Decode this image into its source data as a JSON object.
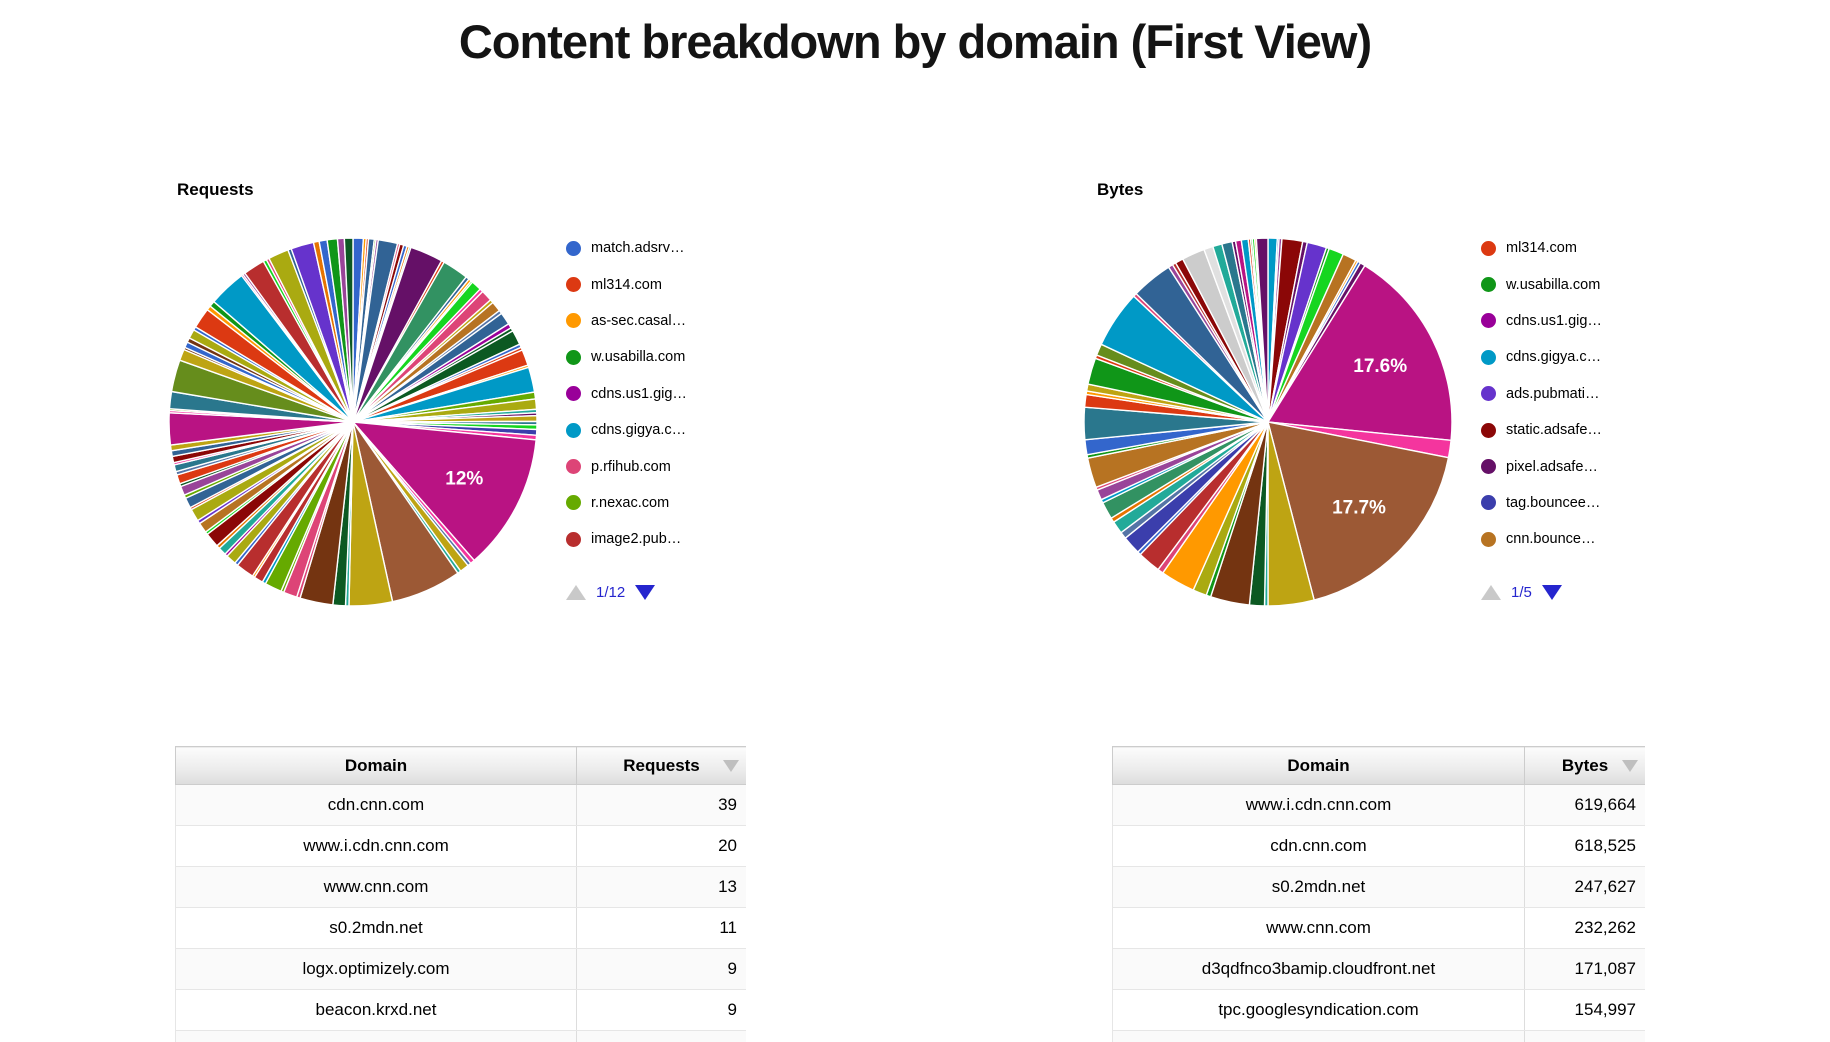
{
  "page": {
    "title": "Content breakdown by domain (First View)"
  },
  "colors": {
    "background": "#FFFFFF",
    "title_text": "#141414",
    "pagination_blue": "#2525CE",
    "pagination_disabled_gray": "#C9C9C9",
    "sort_icon_gray": "#BFBFBF",
    "table_border": "#CCCCCC",
    "pie_slice_gap": "#FFFFFF",
    "pie_label_text": "#FFFFFF"
  },
  "chart_data": [
    {
      "type": "pie",
      "title": "Requests",
      "legend_position": "right",
      "legend_page": "1/12",
      "percent_labels": [
        "12%"
      ],
      "legend_entries": [
        {
          "label": "match.adsrv…",
          "color": "#3366CC"
        },
        {
          "label": "ml314.com",
          "color": "#DC3912"
        },
        {
          "label": "as-sec.casal…",
          "color": "#FF9900"
        },
        {
          "label": "w.usabilla.com",
          "color": "#109618"
        },
        {
          "label": "cdns.us1.gig…",
          "color": "#990099"
        },
        {
          "label": "cdns.gigya.c…",
          "color": "#0099C6"
        },
        {
          "label": "p.rfihub.com",
          "color": "#DD4477"
        },
        {
          "label": "r.nexac.com",
          "color": "#66AA00"
        },
        {
          "label": "image2.pub…",
          "color": "#B82E2E"
        }
      ],
      "slices": [
        {
          "v": 0.9,
          "c": "#3366CC"
        },
        {
          "v": 0.25,
          "c": "#FF9900"
        },
        {
          "v": 0.2,
          "c": "#DC3912"
        },
        {
          "v": 0.5,
          "c": "#316395"
        },
        {
          "v": 0.15,
          "c": "#66AA00"
        },
        {
          "v": 0.2,
          "c": "#994499"
        },
        {
          "v": 1.7,
          "c": "#316395"
        },
        {
          "v": 0.2,
          "c": "#DD4477"
        },
        {
          "v": 0.35,
          "c": "#8B0707"
        },
        {
          "v": 0.3,
          "c": "#3366CC"
        },
        {
          "v": 0.2,
          "c": "#E67300"
        },
        {
          "v": 0.15,
          "c": "#22AA99"
        },
        {
          "v": 2.9,
          "c": "#651067"
        },
        {
          "v": 0.25,
          "c": "#DC3912"
        },
        {
          "v": 2.3,
          "c": "#329262"
        },
        {
          "v": 0.3,
          "c": "#316395"
        },
        {
          "v": 0.25,
          "c": "#FF9900"
        },
        {
          "v": 0.15,
          "c": "#16D620"
        },
        {
          "v": 0.9,
          "c": "#16D620"
        },
        {
          "v": 0.3,
          "c": "#F4359E"
        },
        {
          "v": 1.0,
          "c": "#DD4477"
        },
        {
          "v": 0.3,
          "c": "#BEA413"
        },
        {
          "v": 0.9,
          "c": "#B77322"
        },
        {
          "v": 0.3,
          "c": "#5574A6"
        },
        {
          "v": 1.1,
          "c": "#316395"
        },
        {
          "v": 0.4,
          "c": "#990099"
        },
        {
          "v": 0.3,
          "c": "#0C5922"
        },
        {
          "v": 1.3,
          "c": "#0C5922"
        },
        {
          "v": 0.3,
          "c": "#3366CC"
        },
        {
          "v": 0.25,
          "c": "#DC3912"
        },
        {
          "v": 1.4,
          "c": "#DC3912"
        },
        {
          "v": 0.2,
          "c": "#FF9900"
        },
        {
          "v": 2.2,
          "c": "#0099C6"
        },
        {
          "v": 0.6,
          "c": "#66AA00"
        },
        {
          "v": 0.9,
          "c": "#AAAA11"
        },
        {
          "v": 0.3,
          "c": "#22AA99"
        },
        {
          "v": 0.25,
          "c": "#651067"
        },
        {
          "v": 0.5,
          "c": "#BEA413"
        },
        {
          "v": 0.3,
          "c": "#2A778D"
        },
        {
          "v": 0.4,
          "c": "#16D620"
        },
        {
          "v": 0.5,
          "c": "#3B3EAC"
        },
        {
          "v": 0.4,
          "c": "#F4359E"
        },
        {
          "v": 12.0,
          "c": "#B91383",
          "t": "12%"
        },
        {
          "v": 0.4,
          "c": "#F4359E"
        },
        {
          "v": 0.3,
          "c": "#5574A6"
        },
        {
          "v": 0.8,
          "c": "#BEA413"
        },
        {
          "v": 0.3,
          "c": "#22AA99"
        },
        {
          "v": 6.2,
          "c": "#9C5935"
        },
        {
          "v": 3.8,
          "c": "#BEA413"
        },
        {
          "v": 0.3,
          "c": "#22AA99"
        },
        {
          "v": 1.1,
          "c": "#0C5922"
        },
        {
          "v": 2.9,
          "c": "#743411"
        },
        {
          "v": 0.3,
          "c": "#DD4477"
        },
        {
          "v": 1.2,
          "c": "#DD4477"
        },
        {
          "v": 0.25,
          "c": "#66AA00"
        },
        {
          "v": 1.5,
          "c": "#66AA00"
        },
        {
          "v": 0.3,
          "c": "#0099C6"
        },
        {
          "v": 0.8,
          "c": "#B82E2E"
        },
        {
          "v": 0.2,
          "c": "#FF9900"
        },
        {
          "v": 1.6,
          "c": "#B82E2E"
        },
        {
          "v": 0.3,
          "c": "#3366CC"
        },
        {
          "v": 0.9,
          "c": "#AAAA11"
        },
        {
          "v": 0.25,
          "c": "#990099"
        },
        {
          "v": 0.7,
          "c": "#22AA99"
        },
        {
          "v": 0.3,
          "c": "#E67300"
        },
        {
          "v": 1.3,
          "c": "#8B0707"
        },
        {
          "v": 0.25,
          "c": "#16D620"
        },
        {
          "v": 0.9,
          "c": "#B77322"
        },
        {
          "v": 0.3,
          "c": "#6633CC"
        },
        {
          "v": 1.1,
          "c": "#AAAA11"
        },
        {
          "v": 0.2,
          "c": "#DC3912"
        },
        {
          "v": 0.9,
          "c": "#316395"
        },
        {
          "v": 0.3,
          "c": "#66AA00"
        },
        {
          "v": 0.8,
          "c": "#994499"
        },
        {
          "v": 0.25,
          "c": "#0C5922"
        },
        {
          "v": 0.8,
          "c": "#DC3912"
        },
        {
          "v": 0.3,
          "c": "#5574A6"
        },
        {
          "v": 0.6,
          "c": "#2A778D"
        },
        {
          "v": 0.2,
          "c": "#F4359E"
        },
        {
          "v": 0.55,
          "c": "#8B0707"
        },
        {
          "v": 0.5,
          "c": "#316395"
        },
        {
          "v": 0.5,
          "c": "#BEA413"
        },
        {
          "v": 2.8,
          "c": "#B91383"
        },
        {
          "v": 0.2,
          "c": "#F4359E"
        },
        {
          "v": 0.15,
          "c": "#66AA00"
        },
        {
          "v": 1.5,
          "c": "#2A778D"
        },
        {
          "v": 2.8,
          "c": "#668D1C"
        },
        {
          "v": 1.0,
          "c": "#BEA413"
        },
        {
          "v": 0.2,
          "c": "#743411"
        },
        {
          "v": 0.5,
          "c": "#3366CC"
        },
        {
          "v": 0.4,
          "c": "#743411"
        },
        {
          "v": 0.8,
          "c": "#AAAA11"
        },
        {
          "v": 0.3,
          "c": "#3366CC"
        },
        {
          "v": 1.8,
          "c": "#DC3912"
        },
        {
          "v": 0.4,
          "c": "#FF9900"
        },
        {
          "v": 0.5,
          "c": "#109618"
        },
        {
          "v": 3.3,
          "c": "#0099C6"
        },
        {
          "v": 0.15,
          "c": "#B91383"
        },
        {
          "v": 0.2,
          "c": "#994499"
        },
        {
          "v": 1.9,
          "c": "#B82E2E"
        },
        {
          "v": 0.3,
          "c": "#16D620"
        },
        {
          "v": 0.25,
          "c": "#DD4477"
        },
        {
          "v": 1.8,
          "c": "#AAAA11"
        },
        {
          "v": 0.3,
          "c": "#316395"
        },
        {
          "v": 2.0,
          "c": "#6633CC"
        },
        {
          "v": 0.5,
          "c": "#E67300"
        },
        {
          "v": 0.7,
          "c": "#3366CC"
        },
        {
          "v": 0.9,
          "c": "#109618"
        },
        {
          "v": 0.6,
          "c": "#994499"
        },
        {
          "v": 0.75,
          "c": "#0C5922"
        }
      ]
    },
    {
      "type": "pie",
      "title": "Bytes",
      "legend_position": "right",
      "legend_page": "1/5",
      "percent_labels": [
        "17.6%",
        "17.7%"
      ],
      "legend_entries": [
        {
          "label": "ml314.com",
          "color": "#DC3912"
        },
        {
          "label": "w.usabilla.com",
          "color": "#109618"
        },
        {
          "label": "cdns.us1.gig…",
          "color": "#990099"
        },
        {
          "label": "cdns.gigya.c…",
          "color": "#0099C6"
        },
        {
          "label": "ads.pubmati…",
          "color": "#6633CC"
        },
        {
          "label": "static.adsafe…",
          "color": "#8B0707"
        },
        {
          "label": "pixel.adsafe…",
          "color": "#651067"
        },
        {
          "label": "tag.bouncee…",
          "color": "#3B3EAC"
        },
        {
          "label": "cnn.bounce…",
          "color": "#B77322"
        }
      ],
      "slices": [
        {
          "v": 0.8,
          "c": "#0099C6"
        },
        {
          "v": 0.15,
          "c": "#3366CC"
        },
        {
          "v": 0.25,
          "c": "#994499"
        },
        {
          "v": 1.8,
          "c": "#8B0707"
        },
        {
          "v": 0.4,
          "c": "#651067"
        },
        {
          "v": 1.7,
          "c": "#6633CC"
        },
        {
          "v": 0.25,
          "c": "#109618"
        },
        {
          "v": 1.3,
          "c": "#16D620"
        },
        {
          "v": 1.2,
          "c": "#B77322"
        },
        {
          "v": 0.2,
          "c": "#FF9900"
        },
        {
          "v": 0.25,
          "c": "#3366CC"
        },
        {
          "v": 0.45,
          "c": "#651067"
        },
        {
          "v": 17.6,
          "c": "#B91383",
          "t": "17.6%"
        },
        {
          "v": 1.5,
          "c": "#F4359E"
        },
        {
          "v": 17.7,
          "c": "#9C5935",
          "t": "17.7%"
        },
        {
          "v": 4.0,
          "c": "#BEA413"
        },
        {
          "v": 0.3,
          "c": "#22AA99"
        },
        {
          "v": 1.3,
          "c": "#0C5922"
        },
        {
          "v": 3.4,
          "c": "#743411"
        },
        {
          "v": 0.4,
          "c": "#109618"
        },
        {
          "v": 1.2,
          "c": "#AAAA11"
        },
        {
          "v": 3.0,
          "c": "#FF9900"
        },
        {
          "v": 0.5,
          "c": "#DD4477"
        },
        {
          "v": 2.0,
          "c": "#B82E2E"
        },
        {
          "v": 0.3,
          "c": "#3366CC"
        },
        {
          "v": 1.6,
          "c": "#3B3EAC"
        },
        {
          "v": 0.6,
          "c": "#5574A6"
        },
        {
          "v": 1.1,
          "c": "#22AA99"
        },
        {
          "v": 0.4,
          "c": "#E67300"
        },
        {
          "v": 1.5,
          "c": "#329262"
        },
        {
          "v": 0.3,
          "c": "#0099C6"
        },
        {
          "v": 0.9,
          "c": "#994499"
        },
        {
          "v": 0.25,
          "c": "#DD4477"
        },
        {
          "v": 2.6,
          "c": "#B77322"
        },
        {
          "v": 0.3,
          "c": "#109618"
        },
        {
          "v": 1.3,
          "c": "#3366CC"
        },
        {
          "v": 2.8,
          "c": "#2A778D"
        },
        {
          "v": 1.1,
          "c": "#DC3912"
        },
        {
          "v": 0.3,
          "c": "#FF9900"
        },
        {
          "v": 0.6,
          "c": "#BEA413"
        },
        {
          "v": 2.3,
          "c": "#109618"
        },
        {
          "v": 0.3,
          "c": "#DC3912"
        },
        {
          "v": 1.0,
          "c": "#668D1C"
        },
        {
          "v": 5.0,
          "c": "#0099C6"
        },
        {
          "v": 0.3,
          "c": "#DD4477"
        },
        {
          "v": 3.6,
          "c": "#316395"
        },
        {
          "v": 0.4,
          "c": "#994499"
        },
        {
          "v": 0.3,
          "c": "#B82E2E"
        },
        {
          "v": 0.7,
          "c": "#8B0707"
        },
        {
          "v": 2.0,
          "c": "#CCCCCC"
        },
        {
          "v": 0.8,
          "c": "#E0E0E0"
        },
        {
          "v": 0.8,
          "c": "#22AA99"
        },
        {
          "v": 0.9,
          "c": "#2A778D"
        },
        {
          "v": 0.3,
          "c": "#651067"
        },
        {
          "v": 0.5,
          "c": "#B91383"
        },
        {
          "v": 0.6,
          "c": "#0099C6"
        },
        {
          "v": 0.2,
          "c": "#DC3912"
        },
        {
          "v": 0.15,
          "c": "#109618"
        },
        {
          "v": 0.2,
          "c": "#16D620"
        },
        {
          "v": 0.15,
          "c": "#FF9900"
        },
        {
          "v": 1.0,
          "c": "#651067"
        }
      ]
    },
    {
      "type": "table",
      "columns": [
        "Domain",
        "Requests"
      ],
      "sorted_by": "Requests",
      "sort_direction": "desc",
      "rows": [
        [
          "cdn.cnn.com",
          "39"
        ],
        [
          "www.i.cdn.cnn.com",
          "20"
        ],
        [
          "www.cnn.com",
          "13"
        ],
        [
          "s0.2mdn.net",
          "11"
        ],
        [
          "logx.optimizely.com",
          "9"
        ],
        [
          "beacon.krxd.net",
          "9"
        ]
      ]
    },
    {
      "type": "table",
      "columns": [
        "Domain",
        "Bytes"
      ],
      "sorted_by": "Bytes",
      "sort_direction": "desc",
      "rows": [
        [
          "www.i.cdn.cnn.com",
          "619,664"
        ],
        [
          "cdn.cnn.com",
          "618,525"
        ],
        [
          "s0.2mdn.net",
          "247,627"
        ],
        [
          "www.cnn.com",
          "232,262"
        ],
        [
          "d3qdfnco3bamip.cloudfront.net",
          "171,087"
        ],
        [
          "tpc.googlesyndication.com",
          "154,997"
        ]
      ]
    }
  ]
}
